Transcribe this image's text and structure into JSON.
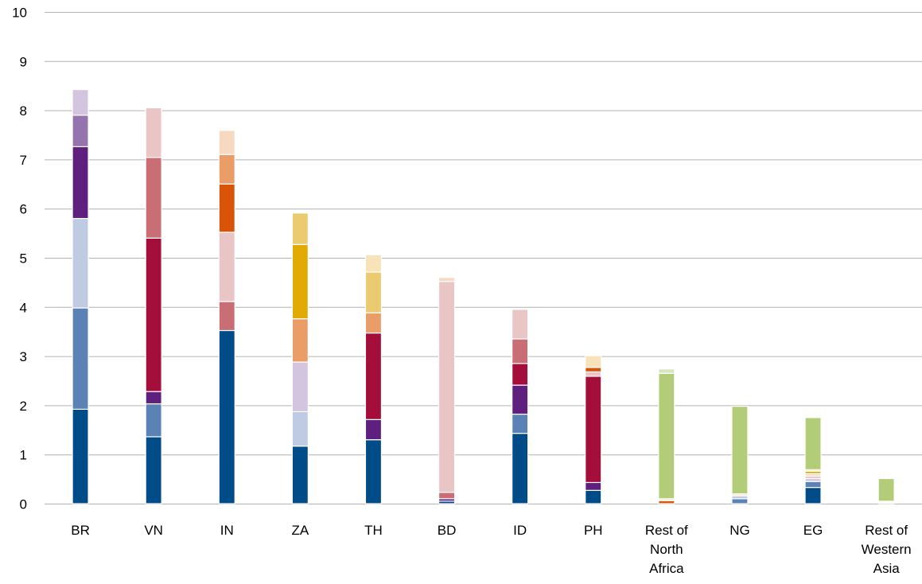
{
  "chart_data": {
    "type": "bar",
    "stacked": true,
    "title": "",
    "xlabel": "",
    "ylabel": "",
    "ylim": [
      0,
      10
    ],
    "yticks": [
      0,
      1,
      2,
      3,
      4,
      5,
      6,
      7,
      8,
      9,
      10
    ],
    "grid": true,
    "legend": "none",
    "categories": [
      {
        "label_lines": [
          "BR"
        ],
        "segments": [
          {
            "value": 1.92,
            "color": "#004c89"
          },
          {
            "value": 2.06,
            "color": "#5b82b5"
          },
          {
            "value": 1.82,
            "color": "#bfcbe2"
          },
          {
            "value": 1.46,
            "color": "#5e1f7e"
          },
          {
            "value": 0.64,
            "color": "#9573ad"
          },
          {
            "value": 0.52,
            "color": "#d3c4e0"
          }
        ]
      },
      {
        "label_lines": [
          "VN"
        ],
        "segments": [
          {
            "value": 1.36,
            "color": "#004c89"
          },
          {
            "value": 0.67,
            "color": "#5b82b5"
          },
          {
            "value": 0.25,
            "color": "#5e1f7e"
          },
          {
            "value": 3.12,
            "color": "#a50d3b"
          },
          {
            "value": 1.64,
            "color": "#c96e75"
          },
          {
            "value": 1.01,
            "color": "#e9c6c5"
          }
        ]
      },
      {
        "label_lines": [
          "IN"
        ],
        "segments": [
          {
            "value": 3.52,
            "color": "#004c89"
          },
          {
            "value": 0.59,
            "color": "#c96e75"
          },
          {
            "value": 1.41,
            "color": "#e9c6c5"
          },
          {
            "value": 0.98,
            "color": "#d95308"
          },
          {
            "value": 0.6,
            "color": "#eb9d67"
          },
          {
            "value": 0.49,
            "color": "#f7d9c1"
          }
        ]
      },
      {
        "label_lines": [
          "ZA"
        ],
        "segments": [
          {
            "value": 1.17,
            "color": "#004c89"
          },
          {
            "value": 0.7,
            "color": "#bfcbe2"
          },
          {
            "value": 1.01,
            "color": "#d3c4e0"
          },
          {
            "value": 0.88,
            "color": "#eb9d67"
          },
          {
            "value": 1.51,
            "color": "#e2aa05"
          },
          {
            "value": 0.64,
            "color": "#eccb70"
          }
        ]
      },
      {
        "label_lines": [
          "TH"
        ],
        "segments": [
          {
            "value": 1.3,
            "color": "#004c89"
          },
          {
            "value": 0.41,
            "color": "#5e1f7e"
          },
          {
            "value": 1.76,
            "color": "#a50d3b"
          },
          {
            "value": 0.41,
            "color": "#eb9d67"
          },
          {
            "value": 0.83,
            "color": "#eccb70"
          },
          {
            "value": 0.35,
            "color": "#f8e3b8"
          }
        ]
      },
      {
        "label_lines": [
          "BD"
        ],
        "segments": [
          {
            "value": 0.05,
            "color": "#004c89"
          },
          {
            "value": 0.05,
            "color": "#5e1f7e"
          },
          {
            "value": 0.13,
            "color": "#c96e75"
          },
          {
            "value": 4.29,
            "color": "#e9c6c5"
          },
          {
            "value": 0.08,
            "color": "#f7d9c1"
          }
        ]
      },
      {
        "label_lines": [
          "ID"
        ],
        "segments": [
          {
            "value": 1.43,
            "color": "#004c89"
          },
          {
            "value": 0.39,
            "color": "#5b82b5"
          },
          {
            "value": 0.59,
            "color": "#5e1f7e"
          },
          {
            "value": 0.44,
            "color": "#a50d3b"
          },
          {
            "value": 0.5,
            "color": "#c96e75"
          },
          {
            "value": 0.6,
            "color": "#e9c6c5"
          }
        ]
      },
      {
        "label_lines": [
          "PH"
        ],
        "segments": [
          {
            "value": 0.27,
            "color": "#004c89"
          },
          {
            "value": 0.16,
            "color": "#5e1f7e"
          },
          {
            "value": 2.16,
            "color": "#a50d3b"
          },
          {
            "value": 0.09,
            "color": "#e9c6c5"
          },
          {
            "value": 0.09,
            "color": "#d95308"
          },
          {
            "value": 0.24,
            "color": "#f8e3b8"
          }
        ]
      },
      {
        "label_lines": [
          "Rest of",
          "North",
          "Africa"
        ],
        "segments": [
          {
            "value": 0.06,
            "color": "#d95308"
          },
          {
            "value": 0.04,
            "color": "#f8e3b8"
          },
          {
            "value": 2.55,
            "color": "#b2cc78"
          },
          {
            "value": 0.09,
            "color": "#d9e5bc"
          }
        ]
      },
      {
        "label_lines": [
          "NG"
        ],
        "segments": [
          {
            "value": 0.1,
            "color": "#5b82b5"
          },
          {
            "value": 0.06,
            "color": "#bfcbe2"
          },
          {
            "value": 0.04,
            "color": "#f8e3b8"
          },
          {
            "value": 1.78,
            "color": "#b2cc78"
          }
        ]
      },
      {
        "label_lines": [
          "EG"
        ],
        "segments": [
          {
            "value": 0.33,
            "color": "#004c89"
          },
          {
            "value": 0.12,
            "color": "#5b82b5"
          },
          {
            "value": 0.06,
            "color": "#d3c4e0"
          },
          {
            "value": 0.05,
            "color": "#e9c6c5"
          },
          {
            "value": 0.05,
            "color": "#f7d9c1"
          },
          {
            "value": 0.05,
            "color": "#e2aa05"
          },
          {
            "value": 0.03,
            "color": "#f8e3b8"
          },
          {
            "value": 1.06,
            "color": "#b2cc78"
          }
        ]
      },
      {
        "label_lines": [
          "Rest of",
          "Western",
          "Asia"
        ],
        "segments": [
          {
            "value": 0.03,
            "color": "#ffffff"
          },
          {
            "value": 0.02,
            "color": "#f8e3b8"
          },
          {
            "value": 0.46,
            "color": "#b2cc78"
          }
        ]
      }
    ]
  }
}
